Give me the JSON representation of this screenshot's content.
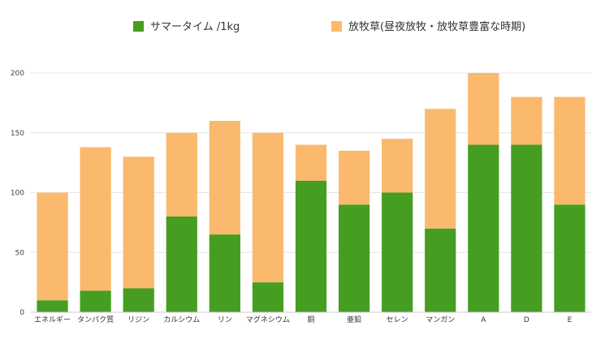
{
  "chart_data": {
    "type": "bar",
    "stacked": true,
    "categories": [
      "エネルギー",
      "タンパク質",
      "リジン",
      "カルシウム",
      "リン",
      "マグネシウム",
      "銅",
      "亜鉛",
      "セレン",
      "マンガン",
      "A",
      "D",
      "E"
    ],
    "series": [
      {
        "name": "サマータイム /1kg",
        "color": "#459e22",
        "values": [
          10,
          18,
          20,
          80,
          65,
          25,
          110,
          90,
          100,
          70,
          140,
          140,
          90
        ]
      },
      {
        "name": "放牧草(昼夜放牧・放牧草豊富な時期)",
        "color": "#fab96d",
        "values": [
          90,
          120,
          110,
          70,
          95,
          125,
          30,
          45,
          45,
          100,
          60,
          40,
          90
        ]
      }
    ],
    "yticks": [
      "0",
      "50",
      "100",
      "150",
      "200"
    ],
    "ylim": [
      0,
      200
    ],
    "grid": true,
    "legend_position": "top"
  }
}
